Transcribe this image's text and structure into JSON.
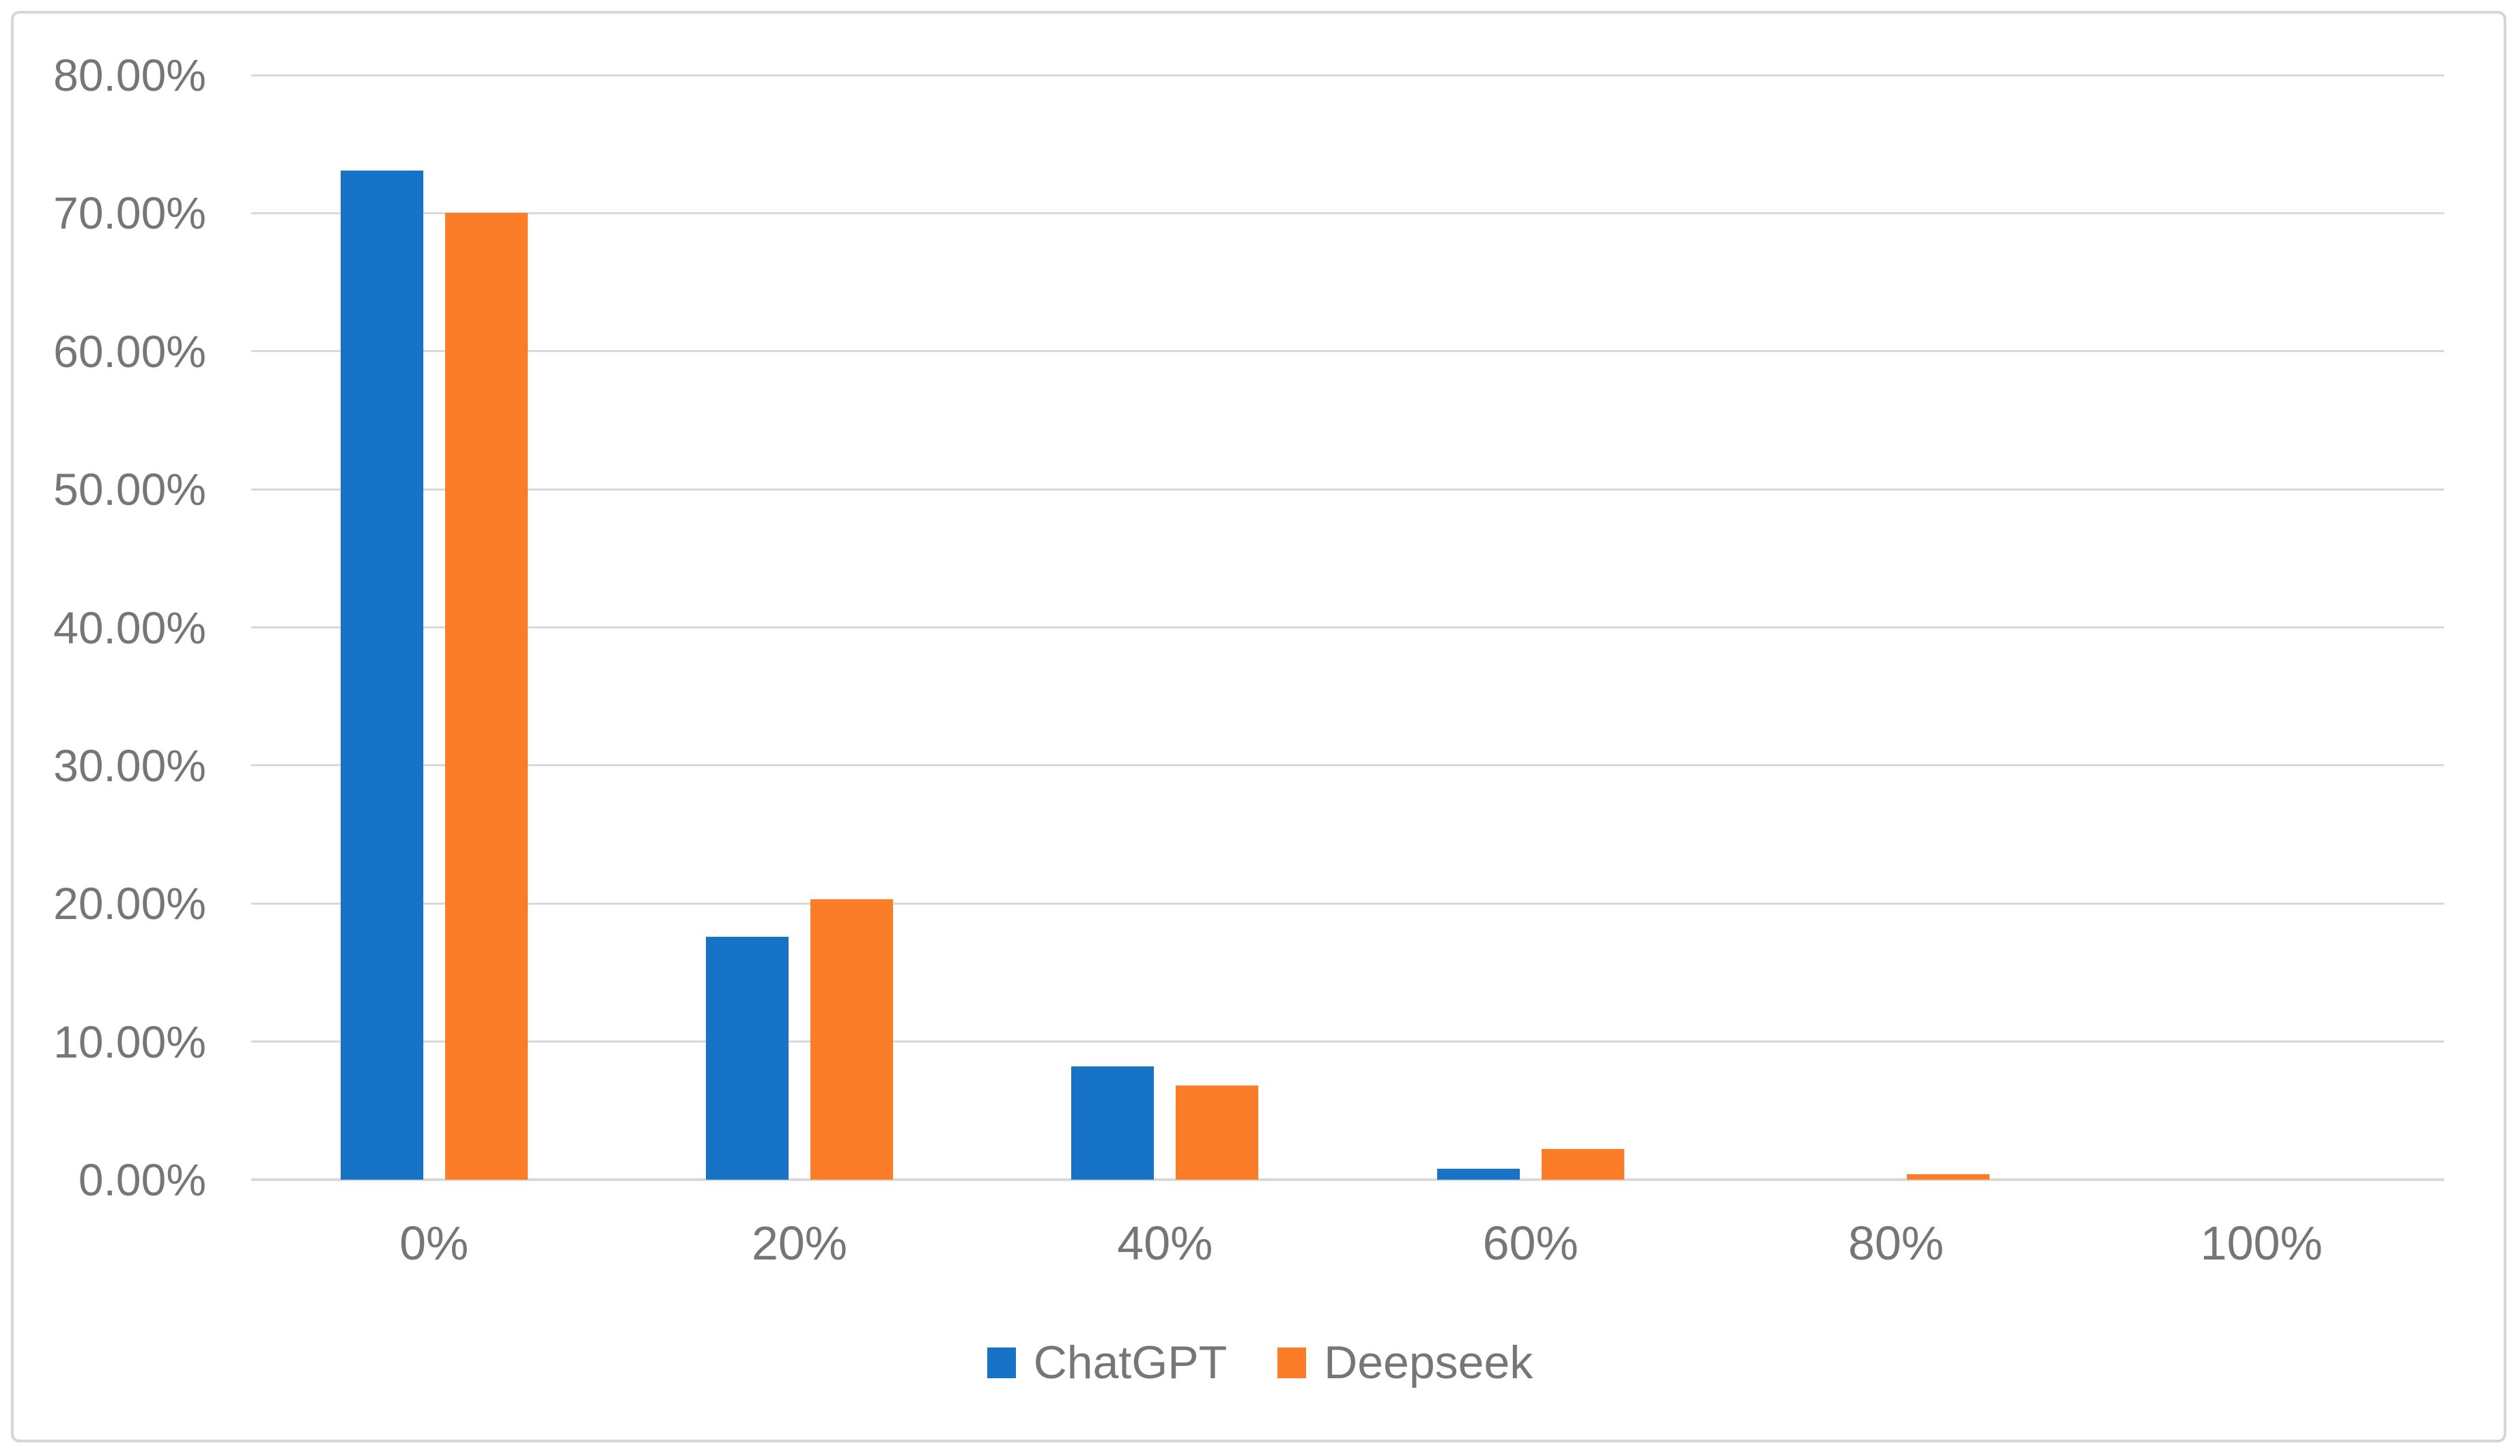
{
  "chart_data": {
    "type": "bar",
    "title": "",
    "xlabel": "",
    "ylabel": "",
    "categories": [
      "0%",
      "20%",
      "40%",
      "60%",
      "80%",
      "100%"
    ],
    "series": [
      {
        "name": "ChatGPT",
        "color": "#1773C6",
        "values": [
          73.1,
          17.6,
          8.2,
          0.8,
          0,
          0
        ]
      },
      {
        "name": "Deepseek",
        "color": "#FB7D28",
        "values": [
          70.0,
          20.3,
          6.8,
          2.2,
          0.4,
          0
        ]
      }
    ],
    "ylim": [
      0,
      80
    ],
    "y_tick_step": 10,
    "y_ticks": [
      "0.00%",
      "10.00%",
      "20.00%",
      "30.00%",
      "40.00%",
      "50.00%",
      "60.00%",
      "70.00%",
      "80.00%"
    ],
    "grid": true,
    "legend_position": "bottom-center"
  },
  "legend": {
    "items": [
      {
        "label": "ChatGPT",
        "color": "#1773C6"
      },
      {
        "label": "Deepseek",
        "color": "#FB7D28"
      }
    ]
  },
  "colors": {
    "background": "#FFFFFF",
    "frame_border": "#D6D6D6",
    "gridline": "#D9D9D9",
    "axis_text": "#767676"
  }
}
